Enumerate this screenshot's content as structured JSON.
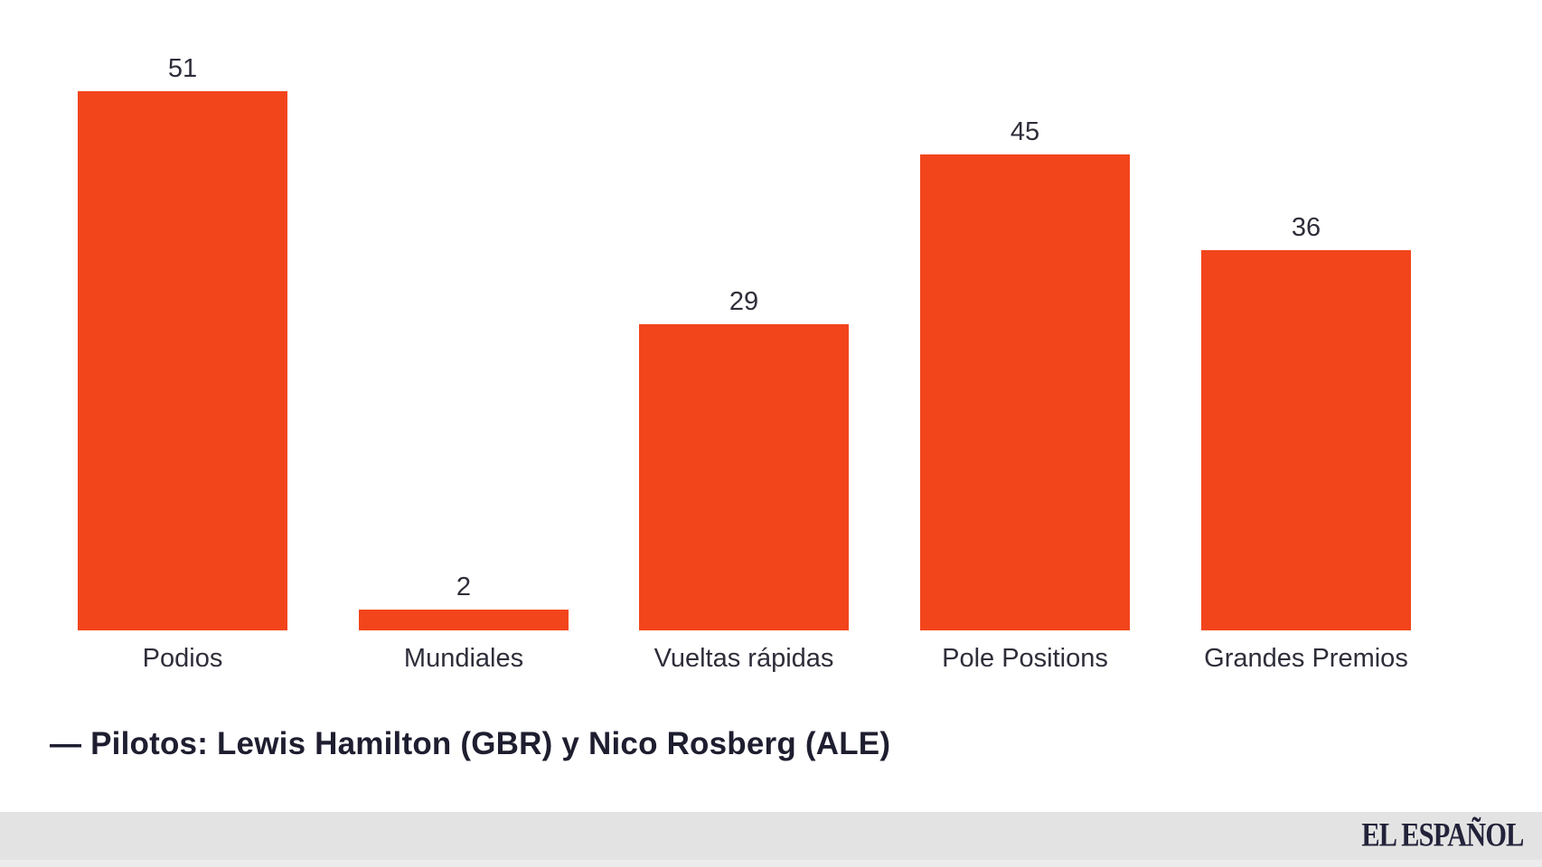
{
  "chart_data": {
    "type": "bar",
    "categories": [
      "Podios",
      "Mundiales",
      "Vueltas rápidas",
      "Pole Positions",
      "Grandes Premios"
    ],
    "values": [
      51,
      2,
      29,
      45,
      36
    ],
    "title": "",
    "xlabel": "",
    "ylabel": "",
    "ylim": [
      0,
      56
    ],
    "grid": false,
    "legend": false,
    "value_labels_shown": true,
    "bar_color": "#f2451c"
  },
  "caption": "— Pilotos: Lewis Hamilton (GBR) y Nico Rosberg (ALE)",
  "footer": {
    "brand": "EL ESPAÑOL"
  },
  "colors": {
    "background": "#ffffff",
    "bar": "#f2451c",
    "label_text": "#2e2e3a",
    "caption_text": "#1e1e30",
    "footer_bg": "#e3e3e3",
    "footer_strip_bg": "#ececec",
    "brand_text": "#22223a"
  }
}
